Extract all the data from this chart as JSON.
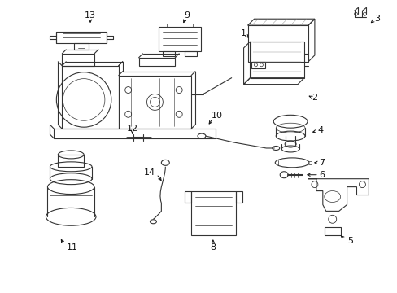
{
  "bg_color": "#ffffff",
  "lc": "#333333",
  "lw": 0.8,
  "figsize": [
    4.89,
    3.6
  ],
  "dpi": 100,
  "xlim": [
    0,
    489
  ],
  "ylim": [
    0,
    360
  ]
}
